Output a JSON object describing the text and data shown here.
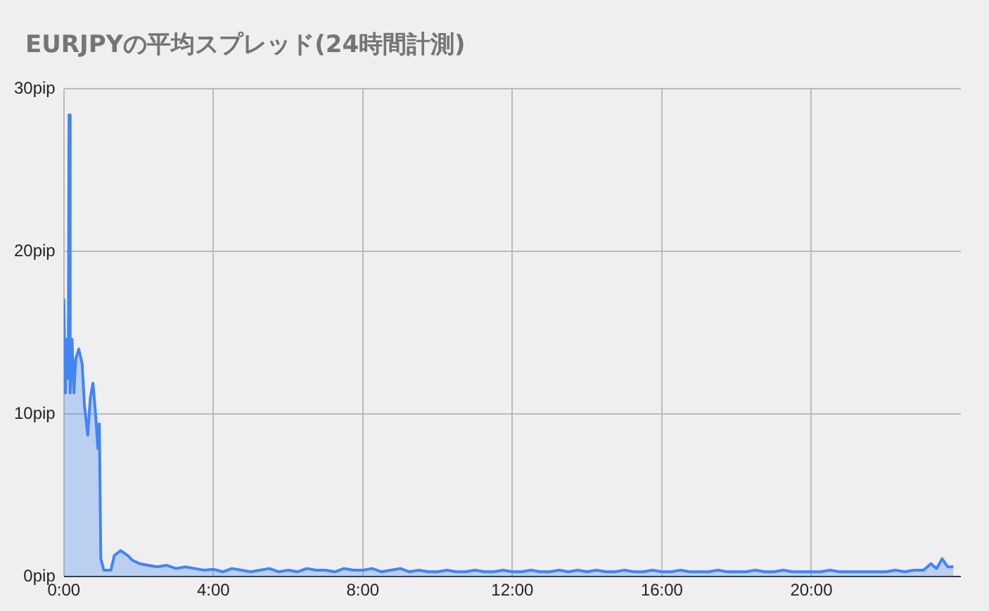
{
  "chart_data": {
    "type": "area",
    "title": "EURJPYの平均スプレッド(24時間計測)",
    "x": [
      0,
      0.04,
      0.08,
      0.12,
      0.14,
      0.17,
      0.22,
      0.27,
      0.32,
      0.4,
      0.49,
      0.55,
      0.64,
      0.71,
      0.78,
      0.86,
      0.91,
      0.95,
      0.99,
      1.07,
      1.26,
      1.35,
      1.52,
      1.71,
      1.84,
      2.03,
      2.25,
      2.5,
      2.75,
      3,
      3.25,
      3.5,
      3.75,
      4,
      4.25,
      4.5,
      4.75,
      5,
      5.25,
      5.5,
      5.75,
      6,
      6.25,
      6.5,
      6.75,
      7,
      7.25,
      7.5,
      7.75,
      8,
      8.25,
      8.5,
      8.75,
      9,
      9.25,
      9.5,
      9.75,
      10,
      10.25,
      10.5,
      10.75,
      11,
      11.25,
      11.5,
      11.75,
      12,
      12.25,
      12.5,
      12.75,
      13,
      13.25,
      13.5,
      13.75,
      14,
      14.25,
      14.5,
      14.75,
      15,
      15.25,
      15.5,
      15.75,
      16,
      16.25,
      16.5,
      16.75,
      17,
      17.25,
      17.5,
      17.75,
      18,
      18.25,
      18.5,
      18.75,
      19,
      19.25,
      19.5,
      19.75,
      20,
      20.25,
      20.5,
      20.75,
      21,
      21.25,
      21.5,
      21.75,
      22,
      22.25,
      22.5,
      22.75,
      23,
      23.2,
      23.35,
      23.5,
      23.65,
      23.8
    ],
    "series": [
      {
        "color": "#4285f4",
        "values": [
          17.1,
          11.3,
          14.6,
          12.2,
          28.4,
          11.3,
          14.6,
          11.3,
          13.4,
          14.0,
          13.1,
          10.6,
          8.7,
          11.0,
          11.9,
          9.7,
          7.9,
          9.4,
          1.1,
          0.4,
          0.4,
          1.3,
          1.6,
          1.3,
          1.0,
          0.8,
          0.7,
          0.6,
          0.7,
          0.5,
          0.6,
          0.5,
          0.4,
          0.45,
          0.3,
          0.5,
          0.4,
          0.3,
          0.4,
          0.5,
          0.3,
          0.4,
          0.3,
          0.5,
          0.4,
          0.4,
          0.3,
          0.5,
          0.4,
          0.4,
          0.5,
          0.3,
          0.4,
          0.5,
          0.3,
          0.4,
          0.3,
          0.3,
          0.4,
          0.3,
          0.3,
          0.4,
          0.3,
          0.3,
          0.4,
          0.3,
          0.3,
          0.4,
          0.3,
          0.3,
          0.4,
          0.3,
          0.4,
          0.3,
          0.4,
          0.3,
          0.3,
          0.4,
          0.3,
          0.3,
          0.4,
          0.3,
          0.3,
          0.4,
          0.3,
          0.3,
          0.3,
          0.4,
          0.3,
          0.3,
          0.3,
          0.4,
          0.3,
          0.3,
          0.4,
          0.3,
          0.3,
          0.3,
          0.3,
          0.4,
          0.3,
          0.3,
          0.3,
          0.3,
          0.3,
          0.3,
          0.4,
          0.3,
          0.4,
          0.4,
          0.8,
          0.5,
          1.1,
          0.6,
          0.6
        ]
      }
    ],
    "xlim": [
      0,
      24
    ],
    "xticks": [
      {
        "value": 0,
        "label": "0:00"
      },
      {
        "value": 4,
        "label": "4:00"
      },
      {
        "value": 8,
        "label": "8:00"
      },
      {
        "value": 12,
        "label": "12:00"
      },
      {
        "value": 16,
        "label": "16:00"
      },
      {
        "value": 20,
        "label": "20:00"
      }
    ],
    "ylim": [
      0,
      30
    ],
    "yticks": [
      {
        "value": 0,
        "label": "0pip"
      },
      {
        "value": 10,
        "label": "10pip"
      },
      {
        "value": 20,
        "label": "20pip"
      },
      {
        "value": 30,
        "label": "30pip"
      }
    ],
    "grid": true,
    "legend": false
  }
}
